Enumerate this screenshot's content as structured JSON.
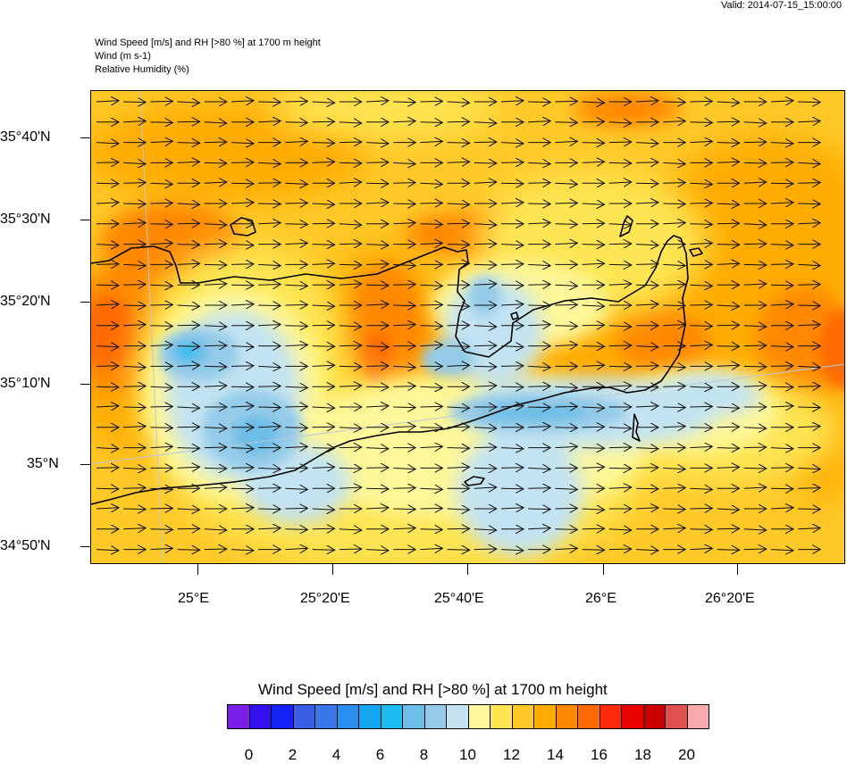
{
  "header": {
    "valid_time": "Valid: 2014-07-15_15:00:00",
    "title_lines": [
      "Wind Speed [m/s] and RH [>80 %] at 1700 m height",
      "Wind   (m s-1)",
      "Relative Humidity   (%)"
    ]
  },
  "map": {
    "lat_labels": [
      "35°40'N",
      "35°30'N",
      "35°20'N",
      "35°10'N",
      "35°N",
      "34°50'N"
    ],
    "lon_labels": [
      "25°E",
      "25°20'E",
      "25°40'E",
      "26°E",
      "26°20'E"
    ],
    "wind_direction": "east",
    "coastline_color": "#000000"
  },
  "legend": {
    "title": "Wind Speed [m/s] and RH [>80 %] at 1700 m height",
    "colors": [
      "#7b1fe8",
      "#3410f0",
      "#1322f5",
      "#3a5ee8",
      "#3978ea",
      "#2a8df0",
      "#15a6f3",
      "#19bdf4",
      "#6cbde8",
      "#94cbe8",
      "#c3e3f2",
      "#fef799",
      "#fee552",
      "#ffc928",
      "#ffab00",
      "#ff8800",
      "#ff6a00",
      "#ff2a0a",
      "#eb0000",
      "#c80000",
      "#e05050",
      "#f7aaaa"
    ],
    "labels": [
      "0",
      "2",
      "4",
      "6",
      "8",
      "10",
      "12",
      "14",
      "16",
      "18",
      "20"
    ]
  }
}
